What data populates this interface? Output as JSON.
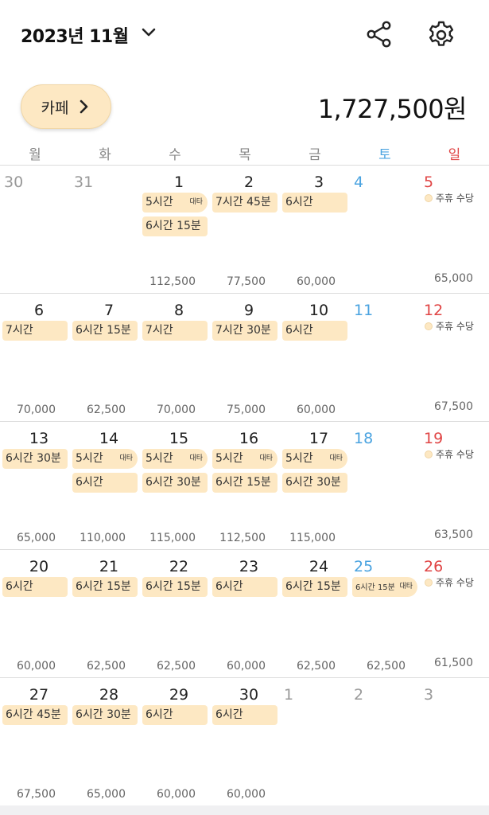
{
  "header": {
    "title": "2023년 11월"
  },
  "category": {
    "label": "카페"
  },
  "total": "1,727,500원",
  "weekdays": [
    {
      "label": "월",
      "type": "wd"
    },
    {
      "label": "화",
      "type": "wd"
    },
    {
      "label": "수",
      "type": "wd"
    },
    {
      "label": "목",
      "type": "wd"
    },
    {
      "label": "금",
      "type": "wd"
    },
    {
      "label": "토",
      "type": "sat"
    },
    {
      "label": "일",
      "type": "sun"
    }
  ],
  "colors": {
    "chip": "#fde8c3",
    "saturday": "#4aa3e0",
    "sunday": "#e04444"
  },
  "weeks": [
    {
      "days": [
        {
          "num": "30",
          "type": "out",
          "chips": [],
          "holiday": "",
          "amount": ""
        },
        {
          "num": "31",
          "type": "out",
          "chips": [],
          "holiday": "",
          "amount": ""
        },
        {
          "num": "1",
          "type": "wd",
          "chips": [
            {
              "text": "5시간",
              "badge": "대타"
            },
            {
              "text": "6시간 15분",
              "badge": ""
            }
          ],
          "holiday": "",
          "amount": "112,500"
        },
        {
          "num": "2",
          "type": "wd",
          "chips": [
            {
              "text": "7시간 45분",
              "badge": ""
            }
          ],
          "holiday": "",
          "amount": "77,500"
        },
        {
          "num": "3",
          "type": "wd",
          "chips": [
            {
              "text": "6시간",
              "badge": ""
            }
          ],
          "holiday": "",
          "amount": "60,000"
        },
        {
          "num": "4",
          "type": "sat",
          "chips": [],
          "holiday": "",
          "amount": ""
        },
        {
          "num": "5",
          "type": "sun",
          "chips": [],
          "holiday": "주휴 수당",
          "amount": "65,000"
        }
      ]
    },
    {
      "days": [
        {
          "num": "6",
          "type": "wd",
          "chips": [
            {
              "text": "7시간",
              "badge": ""
            }
          ],
          "holiday": "",
          "amount": "70,000"
        },
        {
          "num": "7",
          "type": "wd",
          "chips": [
            {
              "text": "6시간 15분",
              "badge": ""
            }
          ],
          "holiday": "",
          "amount": "62,500"
        },
        {
          "num": "8",
          "type": "wd",
          "chips": [
            {
              "text": "7시간",
              "badge": ""
            }
          ],
          "holiday": "",
          "amount": "70,000"
        },
        {
          "num": "9",
          "type": "wd",
          "chips": [
            {
              "text": "7시간 30분",
              "badge": ""
            }
          ],
          "holiday": "",
          "amount": "75,000"
        },
        {
          "num": "10",
          "type": "wd",
          "chips": [
            {
              "text": "6시간",
              "badge": ""
            }
          ],
          "holiday": "",
          "amount": "60,000"
        },
        {
          "num": "11",
          "type": "sat",
          "chips": [],
          "holiday": "",
          "amount": ""
        },
        {
          "num": "12",
          "type": "sun",
          "chips": [],
          "holiday": "주휴 수당",
          "amount": "67,500"
        }
      ]
    },
    {
      "days": [
        {
          "num": "13",
          "type": "wd",
          "chips": [
            {
              "text": "6시간 30분",
              "badge": ""
            }
          ],
          "holiday": "",
          "amount": "65,000"
        },
        {
          "num": "14",
          "type": "wd",
          "chips": [
            {
              "text": "5시간",
              "badge": "대타"
            },
            {
              "text": "6시간",
              "badge": ""
            }
          ],
          "holiday": "",
          "amount": "110,000"
        },
        {
          "num": "15",
          "type": "wd",
          "chips": [
            {
              "text": "5시간",
              "badge": "대타"
            },
            {
              "text": "6시간 30분",
              "badge": ""
            }
          ],
          "holiday": "",
          "amount": "115,000"
        },
        {
          "num": "16",
          "type": "wd",
          "chips": [
            {
              "text": "5시간",
              "badge": "대타"
            },
            {
              "text": "6시간 15분",
              "badge": ""
            }
          ],
          "holiday": "",
          "amount": "112,500"
        },
        {
          "num": "17",
          "type": "wd",
          "chips": [
            {
              "text": "5시간",
              "badge": "대타"
            },
            {
              "text": "6시간 30분",
              "badge": ""
            }
          ],
          "holiday": "",
          "amount": "115,000"
        },
        {
          "num": "18",
          "type": "sat",
          "chips": [],
          "holiday": "",
          "amount": ""
        },
        {
          "num": "19",
          "type": "sun",
          "chips": [],
          "holiday": "주휴 수당",
          "amount": "63,500"
        }
      ]
    },
    {
      "days": [
        {
          "num": "20",
          "type": "wd",
          "chips": [
            {
              "text": "6시간",
              "badge": ""
            }
          ],
          "holiday": "",
          "amount": "60,000"
        },
        {
          "num": "21",
          "type": "wd",
          "chips": [
            {
              "text": "6시간 15분",
              "badge": ""
            }
          ],
          "holiday": "",
          "amount": "62,500"
        },
        {
          "num": "22",
          "type": "wd",
          "chips": [
            {
              "text": "6시간 15분",
              "badge": ""
            }
          ],
          "holiday": "",
          "amount": "62,500"
        },
        {
          "num": "23",
          "type": "wd",
          "chips": [
            {
              "text": "6시간",
              "badge": ""
            }
          ],
          "holiday": "",
          "amount": "60,000"
        },
        {
          "num": "24",
          "type": "wd",
          "chips": [
            {
              "text": "6시간 15분",
              "badge": ""
            }
          ],
          "holiday": "",
          "amount": "62,500"
        },
        {
          "num": "25",
          "type": "sat",
          "chips": [
            {
              "text": "6시간 15분",
              "badge": "대타",
              "small": true
            }
          ],
          "holiday": "",
          "amount": "62,500"
        },
        {
          "num": "26",
          "type": "sun",
          "chips": [],
          "holiday": "주휴 수당",
          "amount": "61,500"
        }
      ]
    },
    {
      "days": [
        {
          "num": "27",
          "type": "wd",
          "chips": [
            {
              "text": "6시간 45분",
              "badge": ""
            }
          ],
          "holiday": "",
          "amount": "67,500"
        },
        {
          "num": "28",
          "type": "wd",
          "chips": [
            {
              "text": "6시간 30분",
              "badge": ""
            }
          ],
          "holiday": "",
          "amount": "65,000"
        },
        {
          "num": "29",
          "type": "wd",
          "chips": [
            {
              "text": "6시간",
              "badge": ""
            }
          ],
          "holiday": "",
          "amount": "60,000"
        },
        {
          "num": "30",
          "type": "wd",
          "chips": [
            {
              "text": "6시간",
              "badge": ""
            }
          ],
          "holiday": "",
          "amount": "60,000"
        },
        {
          "num": "1",
          "type": "out",
          "chips": [],
          "holiday": "",
          "amount": ""
        },
        {
          "num": "2",
          "type": "out",
          "chips": [],
          "holiday": "",
          "amount": ""
        },
        {
          "num": "3",
          "type": "out",
          "chips": [],
          "holiday": "",
          "amount": ""
        }
      ]
    }
  ]
}
